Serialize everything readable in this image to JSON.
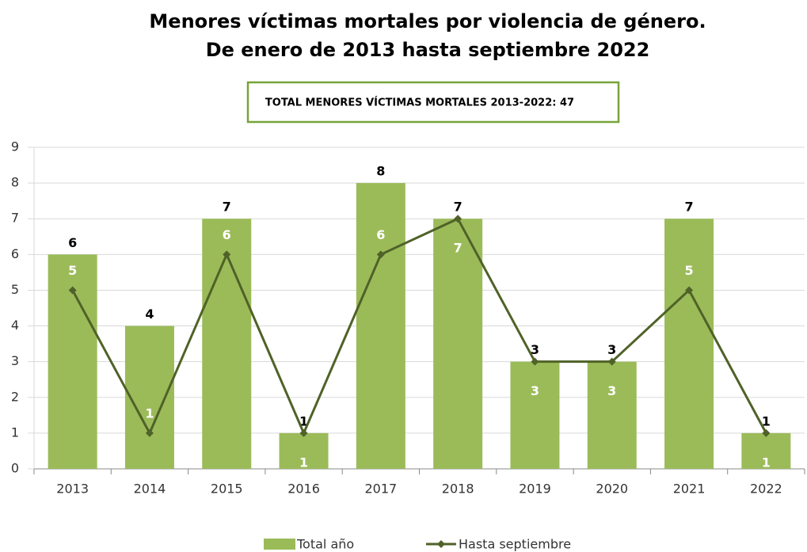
{
  "chart_data": {
    "type": "bar",
    "title": [
      "Menores víctimas mortales por violencia de género.",
      "De enero de 2013 hasta septiembre 2022"
    ],
    "annotation": "TOTAL MENORES VÍCTIMAS MORTALES 2013-2022: 47",
    "categories": [
      "2013",
      "2014",
      "2015",
      "2016",
      "2017",
      "2018",
      "2019",
      "2020",
      "2021",
      "2022"
    ],
    "series": [
      {
        "name": "Total año",
        "type": "bar",
        "color": "#9bbb59",
        "values": [
          6,
          4,
          7,
          1,
          8,
          7,
          3,
          3,
          7,
          1
        ]
      },
      {
        "name": "Hasta septiembre",
        "type": "line",
        "color": "#4f6228",
        "values": [
          5,
          1,
          6,
          1,
          6,
          7,
          3,
          3,
          5,
          1
        ]
      }
    ],
    "ylim": [
      0,
      9
    ],
    "yticks": [
      0,
      1,
      2,
      3,
      4,
      5,
      6,
      7,
      8,
      9
    ],
    "grid": true,
    "legend": "bottom"
  }
}
